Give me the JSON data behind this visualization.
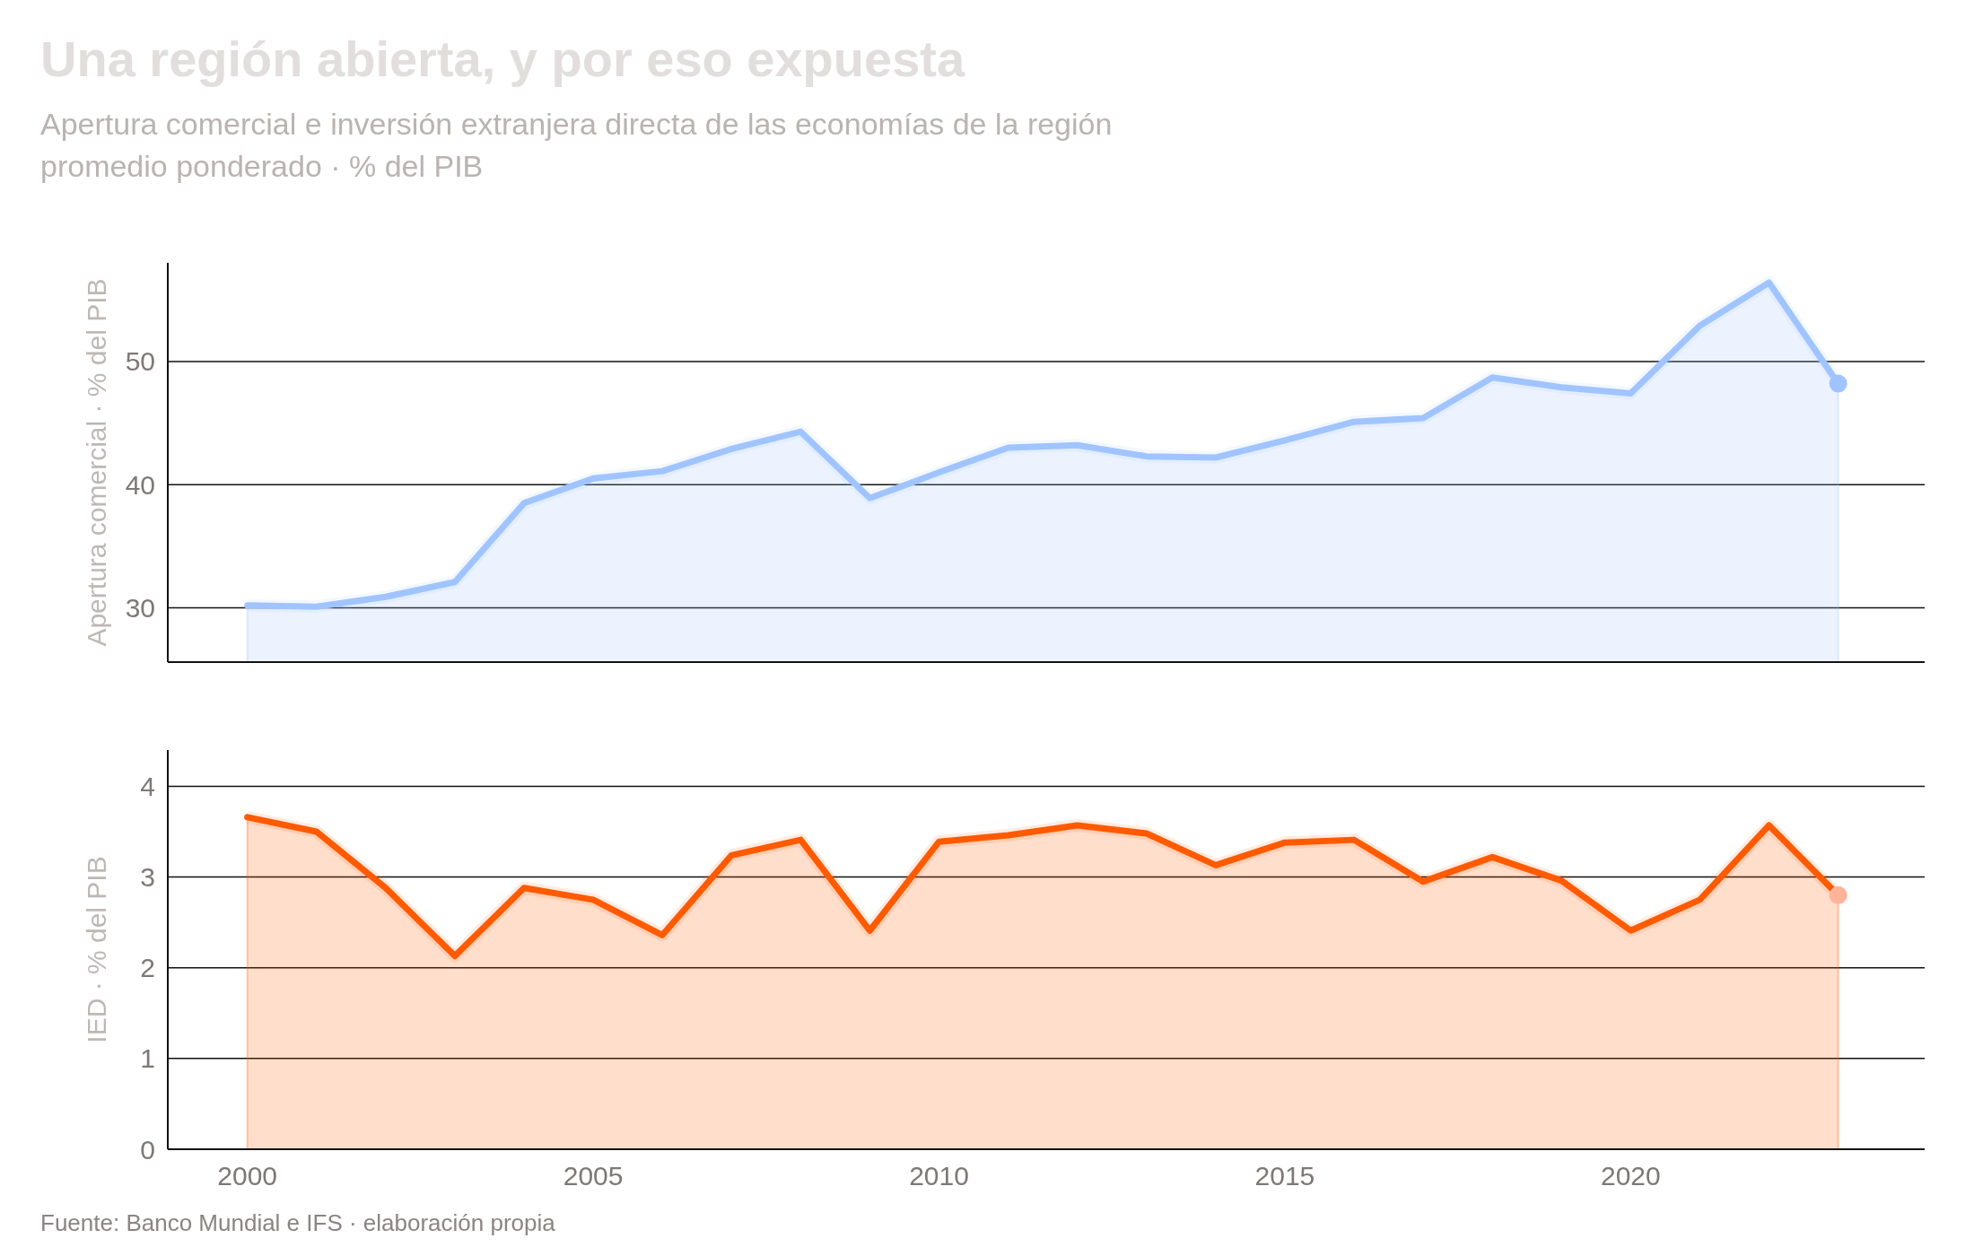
{
  "chart_data": [
    {
      "type": "area",
      "title": "Una región abierta, y por eso expuesta",
      "subtitle": "Apertura comercial e inversión extranjera directa de las economías de la región\npromedio ponderado · % del PIB",
      "ylabel": "Apertura comercial · % del PIB",
      "x": [
        2000,
        2001,
        2002,
        2003,
        2004,
        2005,
        2006,
        2007,
        2008,
        2009,
        2010,
        2011,
        2012,
        2013,
        2014,
        2015,
        2016,
        2017,
        2018,
        2019,
        2020,
        2021,
        2022,
        2023
      ],
      "series": [
        {
          "color": "#a0c4ff",
          "values": [
            30.2,
            30.1,
            30.9,
            32.1,
            38.5,
            40.5,
            41.1,
            42.9,
            44.3,
            38.9,
            41.0,
            43.0,
            43.2,
            42.3,
            42.2,
            43.6,
            45.1,
            45.4,
            48.7,
            47.9,
            47.4,
            52.9,
            56.4,
            48.2
          ]
        },
        {
          "type": "scatter",
          "color": "#a0c4ff",
          "x": [
            2023
          ],
          "values": [
            48.2
          ]
        }
      ],
      "xlim": [
        1998.85,
        2024.25
      ],
      "ylim": [
        25.6,
        58
      ],
      "yticks": [
        30,
        40,
        50
      ],
      "grid": "y",
      "tick_labels": "y"
    },
    {
      "type": "area",
      "ylabel": "IED · % del PIB",
      "annotations": [
        "Fuente: Banco Mundial e IFS · elaboración propia"
      ],
      "x": [
        2000,
        2001,
        2002,
        2003,
        2004,
        2005,
        2006,
        2007,
        2008,
        2009,
        2010,
        2011,
        2012,
        2013,
        2014,
        2015,
        2016,
        2017,
        2018,
        2019,
        2020,
        2021,
        2022,
        2023
      ],
      "series": [
        {
          "color": "#ff5a00",
          "values": [
            3.66,
            3.5,
            2.88,
            2.13,
            2.88,
            2.75,
            2.36,
            3.24,
            3.41,
            2.41,
            3.39,
            3.46,
            3.57,
            3.48,
            3.13,
            3.38,
            3.41,
            2.95,
            3.22,
            2.96,
            2.41,
            2.75,
            3.57,
            2.8
          ]
        },
        {
          "type": "scatter",
          "color": "#ffb49a",
          "x": [
            2023
          ],
          "values": [
            2.8
          ]
        }
      ],
      "xlim": [
        1998.85,
        2024.25
      ],
      "ylim": [
        0,
        4.4
      ],
      "xticks": [
        2000,
        2005,
        2010,
        2015,
        2020
      ],
      "yticks": [
        0,
        1,
        2,
        3,
        4
      ],
      "grid": "y"
    }
  ]
}
